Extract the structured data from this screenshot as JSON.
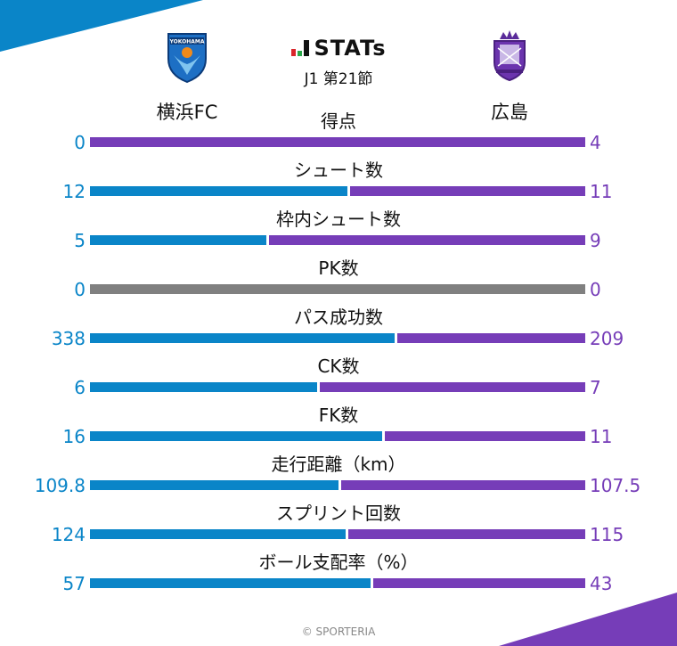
{
  "header": {
    "brand": "STATs",
    "match": "J1 第21節",
    "home_team": "横浜FC",
    "away_team": "広島",
    "home_crest": "yokohama-fc-crest",
    "away_crest": "sanfrecce-hiroshima-crest"
  },
  "colors": {
    "home": "#0a85c8",
    "away": "#763db8",
    "neutral": "#808080"
  },
  "footer": "© SPORTERIA",
  "chart_data": {
    "type": "bar",
    "title": "STATs J1 第21節",
    "orientation": "horizontal-stacked-share",
    "series": [
      {
        "name": "横浜FC",
        "values": [
          0,
          12,
          5,
          0,
          338,
          6,
          16,
          109.8,
          124,
          57
        ]
      },
      {
        "name": "広島",
        "values": [
          4,
          11,
          9,
          0,
          209,
          7,
          11,
          107.5,
          115,
          43
        ]
      }
    ],
    "categories": [
      "得点",
      "シュート数",
      "枠内シュート数",
      "PK数",
      "パス成功数",
      "CK数",
      "FK数",
      "走行距離（km）",
      "スプリント回数",
      "ボール支配率（%）"
    ]
  },
  "stats": [
    {
      "label": "得点",
      "home": "0",
      "away": "4"
    },
    {
      "label": "シュート数",
      "home": "12",
      "away": "11"
    },
    {
      "label": "枠内シュート数",
      "home": "5",
      "away": "9"
    },
    {
      "label": "PK数",
      "home": "0",
      "away": "0"
    },
    {
      "label": "パス成功数",
      "home": "338",
      "away": "209"
    },
    {
      "label": "CK数",
      "home": "6",
      "away": "7"
    },
    {
      "label": "FK数",
      "home": "16",
      "away": "11"
    },
    {
      "label": "走行距離（km）",
      "home": "109.8",
      "away": "107.5"
    },
    {
      "label": "スプリント回数",
      "home": "124",
      "away": "115"
    },
    {
      "label": "ボール支配率（%）",
      "home": "57",
      "away": "43"
    }
  ]
}
